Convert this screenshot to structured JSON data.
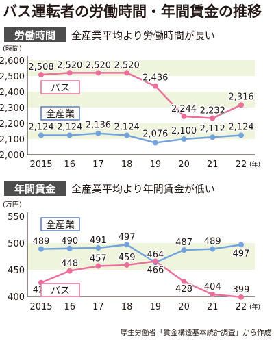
{
  "title": "バス運転者の労働時間・年間賃金の推移",
  "source": "厚生労働省「賃金構造基本統計調査」から作成",
  "colors": {
    "bus": "#e8709a",
    "all": "#74a3dc",
    "band": "#eef5dc",
    "header_bg": "#4d4d4d",
    "label_border_bus": "#e8709a",
    "label_border_all": "#5b7fbf"
  },
  "chart_data": [
    {
      "type": "line",
      "panel_label": "労働時間",
      "subtitle": "全産業平均より労働時間が長い",
      "unit": "(時間)",
      "x_unit": "(年)",
      "x_tick_labels": [
        "2015",
        "16",
        "17",
        "18",
        "19",
        "20",
        "21",
        "22"
      ],
      "x": [
        2015,
        2016,
        2017,
        2018,
        2019,
        2020,
        2021,
        2022
      ],
      "ylim": [
        2000,
        2600
      ],
      "y_ticks": [
        2000,
        2100,
        2200,
        2300,
        2400,
        2500,
        2600
      ],
      "y_tick_labels": [
        "2,000",
        "2,100",
        "2,200",
        "2,300",
        "2,400",
        "2,500",
        "2,600"
      ],
      "grid": "alternating bands",
      "series": [
        {
          "name": "バス",
          "values": [
            2508,
            2520,
            2520,
            2520,
            2436,
            2244,
            2232,
            2316
          ],
          "labels": [
            "2,508",
            "2,520",
            "2,520",
            "2,520",
            "2,436",
            "2,244",
            "2,232",
            "2,316"
          ]
        },
        {
          "name": "全産業",
          "values": [
            2124,
            2124,
            2136,
            2124,
            2076,
            2100,
            2112,
            2124
          ],
          "labels": [
            "2,124",
            "2,124",
            "2,136",
            "2,124",
            "2,076",
            "2,100",
            "2,112",
            "2,124"
          ]
        }
      ]
    },
    {
      "type": "line",
      "panel_label": "年間賃金",
      "subtitle": "全産業平均より年間賃金が低い",
      "unit": "(万円)",
      "x_unit": "(年)",
      "x_tick_labels": [
        "2015",
        "16",
        "17",
        "18",
        "19",
        "20",
        "21",
        "22"
      ],
      "x": [
        2015,
        2016,
        2017,
        2018,
        2019,
        2020,
        2021,
        2022
      ],
      "ylim": [
        400,
        550
      ],
      "y_ticks": [
        400,
        450,
        500,
        550
      ],
      "y_tick_labels": [
        "400",
        "450",
        "500",
        "550"
      ],
      "grid": "alternating bands",
      "series": [
        {
          "name": "全産業",
          "values": [
            489,
            490,
            491,
            497,
            464,
            487,
            489,
            497
          ],
          "labels": [
            "489",
            "490",
            "491",
            "497",
            "464",
            "487",
            "489",
            "497"
          ]
        },
        {
          "name": "バス",
          "values": [
            426,
            448,
            457,
            459,
            466,
            428,
            404,
            399
          ],
          "labels": [
            "426",
            "448",
            "457",
            "459",
            "466",
            "428",
            "404",
            "399"
          ]
        }
      ]
    }
  ]
}
